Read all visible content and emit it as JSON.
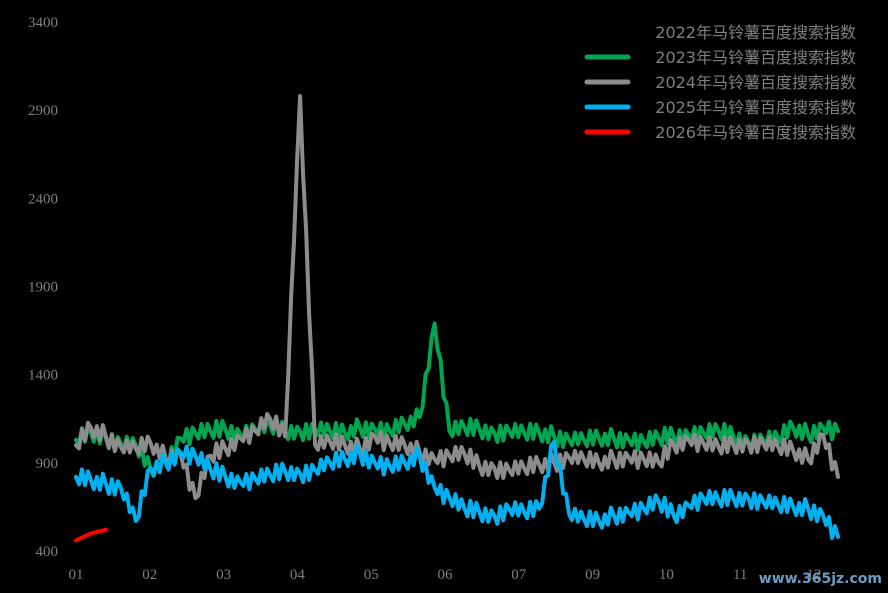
{
  "chart_data": {
    "type": "line",
    "title": "",
    "xlabel": "",
    "ylabel": "",
    "ylim": [
      400,
      3400
    ],
    "y_ticks": [
      "400",
      "900",
      "1400",
      "1900",
      "2400",
      "2900",
      "3400"
    ],
    "x_ticks": [
      "01",
      "02",
      "03",
      "04",
      "05",
      "06",
      "07",
      "09",
      "10",
      "11",
      "12"
    ],
    "legend_position": "top-right",
    "grid": false,
    "series": [
      {
        "name": "2022年马铃薯百度搜索指数",
        "color": "#000000",
        "week": [],
        "values": []
      },
      {
        "name": "2023年马铃薯百度搜索指数",
        "color": "#00a550",
        "week": [
          1,
          2,
          3,
          4,
          5,
          6,
          7,
          8,
          9,
          10,
          11,
          12,
          13,
          14,
          15,
          16,
          17,
          18,
          19,
          20,
          21,
          22,
          23,
          24,
          25,
          26,
          27,
          28,
          29,
          30,
          31,
          32,
          33,
          34,
          35,
          36,
          37,
          38,
          39,
          40,
          41,
          42,
          43,
          44,
          45,
          46,
          47,
          48,
          49,
          50,
          51,
          52
        ],
        "values": [
          1030,
          1070,
          1040,
          1010,
          1000,
          860,
          900,
          1040,
          1070,
          1080,
          1090,
          1060,
          1090,
          1110,
          1080,
          1080,
          1090,
          1080,
          1070,
          1100,
          1090,
          1080,
          1120,
          1160,
          1690,
          1080,
          1100,
          1090,
          1070,
          1080,
          1070,
          1070,
          1050,
          1030,
          1030,
          1040,
          1040,
          1030,
          1020,
          1040,
          1050,
          1060,
          1070,
          1080,
          1050,
          1020,
          1030,
          1040,
          1100,
          1060,
          1100,
          1080
        ]
      },
      {
        "name": "2024年马铃薯百度搜索指数",
        "color": "#8c8c8c",
        "week": [
          1,
          2,
          3,
          4,
          5,
          6,
          7,
          8,
          9,
          10,
          11,
          12,
          13,
          14,
          15,
          16,
          17,
          18,
          19,
          20,
          21,
          22,
          23,
          24,
          25,
          26,
          27,
          28,
          29,
          30,
          31,
          32,
          33,
          34,
          35,
          36,
          37,
          38,
          39,
          40,
          41,
          42,
          43,
          44,
          45,
          46,
          47,
          48,
          49,
          50,
          51,
          52
        ],
        "values": [
          1000,
          1100,
          1050,
          990,
          980,
          1010,
          930,
          950,
          700,
          940,
          980,
          1040,
          1080,
          1150,
          1050,
          2980,
          1000,
          1020,
          1000,
          980,
          1050,
          1010,
          1000,
          960,
          920,
          940,
          950,
          880,
          870,
          860,
          870,
          890,
          900,
          930,
          920,
          900,
          920,
          930,
          920,
          900,
          1000,
          1030,
          1010,
          990,
          1000,
          1010,
          1010,
          990,
          970,
          920,
          1060,
          820
        ]
      },
      {
        "name": "2025年马铃薯百度搜索指数",
        "color": "#00b0f0",
        "week": [
          1,
          2,
          3,
          4,
          5,
          6,
          7,
          8,
          9,
          10,
          11,
          12,
          13,
          14,
          15,
          16,
          17,
          18,
          19,
          20,
          21,
          22,
          23,
          24,
          25,
          26,
          27,
          28,
          29,
          30,
          31,
          32,
          33,
          34,
          35,
          36,
          37,
          38,
          39,
          40,
          41,
          42,
          43,
          44,
          45,
          46,
          47,
          48,
          49,
          50,
          51,
          52
        ],
        "values": [
          820,
          800,
          780,
          760,
          570,
          870,
          900,
          960,
          940,
          860,
          820,
          790,
          810,
          830,
          850,
          840,
          860,
          900,
          920,
          950,
          900,
          880,
          900,
          940,
          760,
          700,
          640,
          620,
          600,
          640,
          620,
          640,
          1020,
          610,
          580,
          570,
          600,
          620,
          640,
          680,
          600,
          660,
          700,
          690,
          700,
          700,
          680,
          660,
          650,
          640,
          600,
          480
        ]
      },
      {
        "name": "2026年马铃薯百度搜索指数",
        "color": "#ff0000",
        "week": [
          1,
          2,
          3
        ],
        "values": [
          460,
          500,
          520
        ]
      }
    ]
  },
  "watermark": "www.365jz.com"
}
